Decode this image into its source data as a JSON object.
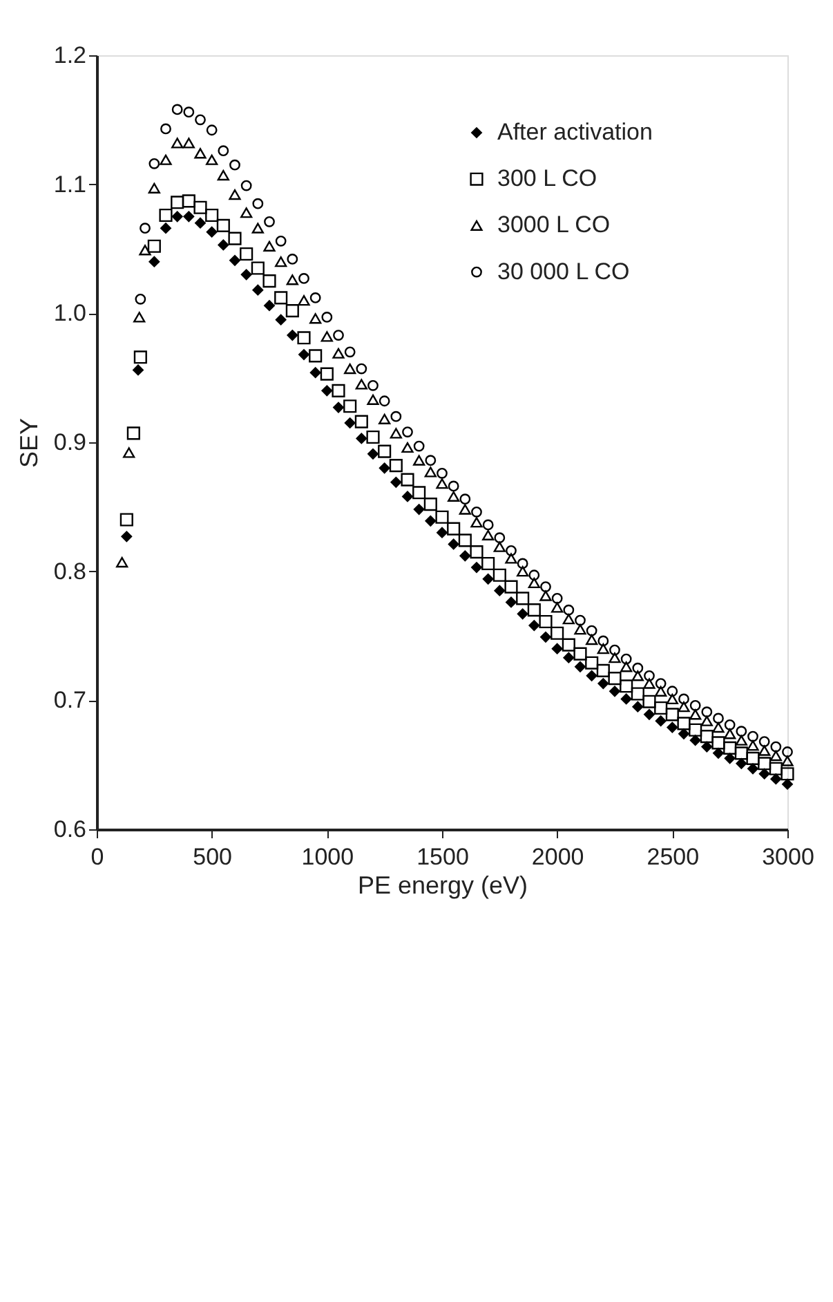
{
  "chart_data": {
    "type": "scatter",
    "xlabel": "PE energy (eV)",
    "ylabel": "SEY",
    "xlim": [
      0,
      3000
    ],
    "xticks": [
      0,
      500,
      1000,
      1500,
      2000,
      2500,
      3000
    ],
    "ylim": [
      0.6,
      1.2
    ],
    "yticks": [
      0.6,
      0.7,
      0.8,
      0.9,
      {
        "value": 1.0,
        "label": "1.0"
      },
      1.1,
      1.2
    ],
    "grid": false,
    "legend": "top right",
    "series": [
      {
        "name": "After activation",
        "color": "#000000",
        "marker": "diamond",
        "x": [
          130,
          180,
          250,
          300,
          350,
          400,
          450,
          500,
          550,
          600,
          650,
          700,
          750,
          800,
          850,
          900,
          950,
          1000,
          1050,
          1100,
          1150,
          1200,
          1250,
          1300,
          1350,
          1400,
          1450,
          1500,
          1550,
          1600,
          1650,
          1700,
          1750,
          1800,
          1850,
          1900,
          1950,
          2000,
          2050,
          2100,
          2150,
          2200,
          2250,
          2300,
          2350,
          2400,
          2450,
          2500,
          2550,
          2600,
          2650,
          2700,
          2750,
          2800,
          2850,
          2900,
          2950,
          3000
        ],
        "values": [
          0.827,
          0.956,
          1.04,
          1.066,
          1.075,
          1.075,
          1.07,
          1.063,
          1.053,
          1.041,
          1.03,
          1.018,
          1.006,
          0.995,
          0.983,
          0.968,
          0.954,
          0.94,
          0.927,
          0.915,
          0.903,
          0.891,
          0.88,
          0.869,
          0.858,
          0.848,
          0.839,
          0.83,
          0.821,
          0.812,
          0.803,
          0.794,
          0.785,
          0.776,
          0.767,
          0.758,
          0.749,
          0.74,
          0.733,
          0.726,
          0.719,
          0.713,
          0.707,
          0.701,
          0.695,
          0.689,
          0.684,
          0.679,
          0.674,
          0.669,
          0.664,
          0.659,
          0.655,
          0.651,
          0.647,
          0.643,
          0.639,
          0.635
        ]
      },
      {
        "name": "300 L CO",
        "color": "#000000",
        "marker": "square",
        "x": [
          130,
          160,
          190,
          250,
          300,
          350,
          400,
          450,
          500,
          550,
          600,
          650,
          700,
          750,
          800,
          850,
          900,
          950,
          1000,
          1050,
          1100,
          1150,
          1200,
          1250,
          1300,
          1350,
          1400,
          1450,
          1500,
          1550,
          1600,
          1650,
          1700,
          1750,
          1800,
          1850,
          1900,
          1950,
          2000,
          2050,
          2100,
          2150,
          2200,
          2250,
          2300,
          2350,
          2400,
          2450,
          2500,
          2550,
          2600,
          2650,
          2700,
          2750,
          2800,
          2850,
          2900,
          2950,
          3000
        ],
        "values": [
          0.84,
          0.907,
          0.966,
          1.052,
          1.076,
          1.086,
          1.087,
          1.082,
          1.076,
          1.068,
          1.058,
          1.046,
          1.035,
          1.025,
          1.012,
          1.002,
          0.981,
          0.967,
          0.953,
          0.94,
          0.928,
          0.916,
          0.904,
          0.893,
          0.882,
          0.871,
          0.861,
          0.852,
          0.842,
          0.833,
          0.824,
          0.815,
          0.806,
          0.797,
          0.788,
          0.779,
          0.77,
          0.761,
          0.752,
          0.743,
          0.736,
          0.729,
          0.723,
          0.717,
          0.711,
          0.705,
          0.699,
          0.694,
          0.689,
          0.682,
          0.677,
          0.672,
          0.667,
          0.663,
          0.659,
          0.655,
          0.651,
          0.647,
          0.643
        ]
      },
      {
        "name": "3000 L CO",
        "color": "#000000",
        "marker": "triangle",
        "x": [
          110,
          140,
          185,
          210,
          250,
          300,
          350,
          400,
          450,
          500,
          550,
          600,
          650,
          700,
          750,
          800,
          850,
          900,
          950,
          1000,
          1050,
          1100,
          1150,
          1200,
          1250,
          1300,
          1350,
          1400,
          1450,
          1500,
          1550,
          1600,
          1650,
          1700,
          1750,
          1800,
          1850,
          1900,
          1950,
          2000,
          2050,
          2100,
          2150,
          2200,
          2250,
          2300,
          2350,
          2400,
          2450,
          2500,
          2550,
          2600,
          2650,
          2700,
          2750,
          2800,
          2850,
          2900,
          2950,
          3000
        ],
        "values": [
          0.807,
          0.892,
          0.997,
          1.049,
          1.097,
          1.119,
          1.132,
          1.132,
          1.124,
          1.119,
          1.107,
          1.092,
          1.078,
          1.066,
          1.052,
          1.04,
          1.026,
          1.01,
          0.996,
          0.982,
          0.969,
          0.957,
          0.945,
          0.933,
          0.918,
          0.907,
          0.896,
          0.886,
          0.877,
          0.868,
          0.858,
          0.848,
          0.838,
          0.828,
          0.819,
          0.81,
          0.8,
          0.791,
          0.781,
          0.772,
          0.763,
          0.755,
          0.747,
          0.74,
          0.733,
          0.726,
          0.719,
          0.713,
          0.707,
          0.701,
          0.695,
          0.689,
          0.684,
          0.679,
          0.674,
          0.669,
          0.665,
          0.661,
          0.657,
          0.653
        ]
      },
      {
        "name": "30 000 L CO",
        "color": "#000000",
        "marker": "circle",
        "x": [
          190,
          210,
          250,
          300,
          350,
          400,
          450,
          500,
          550,
          600,
          650,
          700,
          750,
          800,
          850,
          900,
          950,
          1000,
          1050,
          1100,
          1150,
          1200,
          1250,
          1300,
          1350,
          1400,
          1450,
          1500,
          1550,
          1600,
          1650,
          1700,
          1750,
          1800,
          1850,
          1900,
          1950,
          2000,
          2050,
          2100,
          2150,
          2200,
          2250,
          2300,
          2350,
          2400,
          2450,
          2500,
          2550,
          2600,
          2650,
          2700,
          2750,
          2800,
          2850,
          2900,
          2950,
          3000
        ],
        "values": [
          1.011,
          1.066,
          1.116,
          1.143,
          1.158,
          1.156,
          1.15,
          1.142,
          1.126,
          1.115,
          1.099,
          1.085,
          1.071,
          1.056,
          1.042,
          1.027,
          1.012,
          0.997,
          0.983,
          0.97,
          0.957,
          0.944,
          0.932,
          0.92,
          0.908,
          0.897,
          0.886,
          0.876,
          0.866,
          0.856,
          0.846,
          0.836,
          0.826,
          0.816,
          0.806,
          0.797,
          0.788,
          0.779,
          0.77,
          0.762,
          0.754,
          0.746,
          0.739,
          0.732,
          0.725,
          0.719,
          0.713,
          0.707,
          0.701,
          0.696,
          0.691,
          0.686,
          0.681,
          0.676,
          0.672,
          0.668,
          0.664,
          0.66
        ]
      }
    ]
  }
}
